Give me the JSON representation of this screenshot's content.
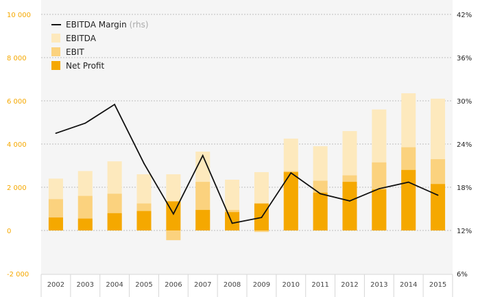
{
  "chart_data": {
    "type": "bar",
    "categories": [
      "2002",
      "2003",
      "2004",
      "2005",
      "2006",
      "2007",
      "2008",
      "2009",
      "2010",
      "2011",
      "2012",
      "2013",
      "2014",
      "2015"
    ],
    "series": [
      {
        "name": "EBITDA",
        "kind": "bar",
        "axis": "left",
        "color": "#fde9bd",
        "values": [
          2400,
          2750,
          3200,
          2600,
          2600,
          3650,
          2350,
          2700,
          4250,
          3900,
          4600,
          5600,
          6350,
          6100
        ]
      },
      {
        "name": "EBIT",
        "kind": "bar",
        "axis": "left",
        "color": "#fbd27e",
        "values": [
          1450,
          1600,
          1700,
          1250,
          -450,
          2250,
          950,
          -70,
          2750,
          2300,
          2550,
          3150,
          3850,
          3300
        ]
      },
      {
        "name": "Net Profit",
        "kind": "bar",
        "axis": "left",
        "color": "#f5a800",
        "values": [
          600,
          550,
          800,
          900,
          1350,
          950,
          850,
          1250,
          2700,
          1750,
          2250,
          1900,
          2800,
          2150
        ]
      },
      {
        "name": "EBITDA Margin",
        "name_suffix": "(rhs)",
        "kind": "line",
        "axis": "right",
        "color": "#111111",
        "values": [
          25.5,
          26.9,
          29.5,
          21.3,
          14.3,
          22.4,
          13.0,
          13.8,
          20.0,
          17.1,
          16.1,
          17.8,
          18.7,
          16.9
        ]
      }
    ],
    "left_axis": {
      "min": -2000,
      "max": 10000,
      "ticks": [
        "-2 000",
        "0",
        "2 000",
        "4 000",
        "6 000",
        "8 000",
        "10 000"
      ],
      "tick_values": [
        -2000,
        0,
        2000,
        4000,
        6000,
        8000,
        10000
      ]
    },
    "right_axis": {
      "min": 6,
      "max": 42,
      "ticks": [
        "6%",
        "12%",
        "18%",
        "24%",
        "30%",
        "36%",
        "42%"
      ],
      "tick_values": [
        6,
        12,
        18,
        24,
        30,
        36,
        42
      ]
    },
    "plot_background": "#f5f5f5",
    "legend_position": "top-left",
    "bar_layout": "overlapping"
  }
}
